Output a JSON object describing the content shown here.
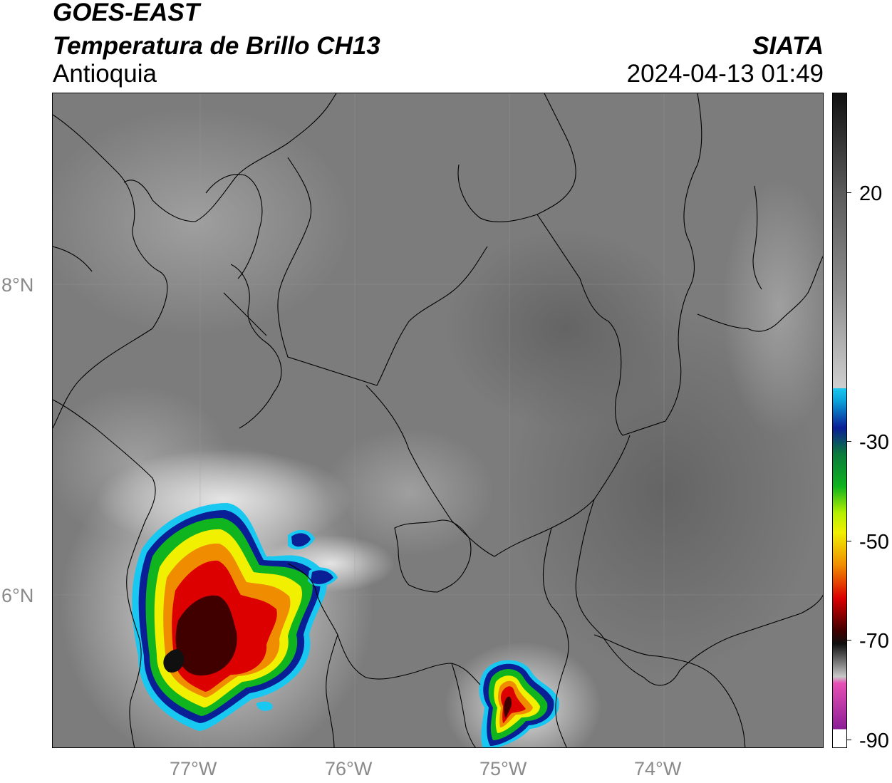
{
  "header": {
    "satellite": "GOES-EAST",
    "product": "Temperatura de Brillo CH13",
    "region": "Antioquia",
    "brand": "SIATA",
    "timestamp": "2024-04-13 01:49"
  },
  "axes": {
    "x_ticks": [
      "77°W",
      "76°W",
      "75°W",
      "74°W"
    ],
    "y_ticks": [
      "8°N",
      "6°N"
    ]
  },
  "colorbar": {
    "tick_labels": [
      "20",
      "-30",
      "-50",
      "-70",
      "-90"
    ],
    "colors": {
      "black_top": "#111111",
      "gray_mid": "#8c8c8c",
      "white": "#f5f5f5",
      "cyan": "#19c8f0",
      "blue": "#0a1e96",
      "green": "#0fb41e",
      "yellow": "#f0f000",
      "orange": "#f08c00",
      "red": "#dc0000",
      "dark_red": "#400000",
      "pink": "#e650b4",
      "purple": "#8c1e96"
    }
  },
  "map_layers": {
    "background": "grayscale brightness temperature",
    "storm_cells": [
      "west coastal convective system",
      "southern cell near 75°W"
    ]
  }
}
